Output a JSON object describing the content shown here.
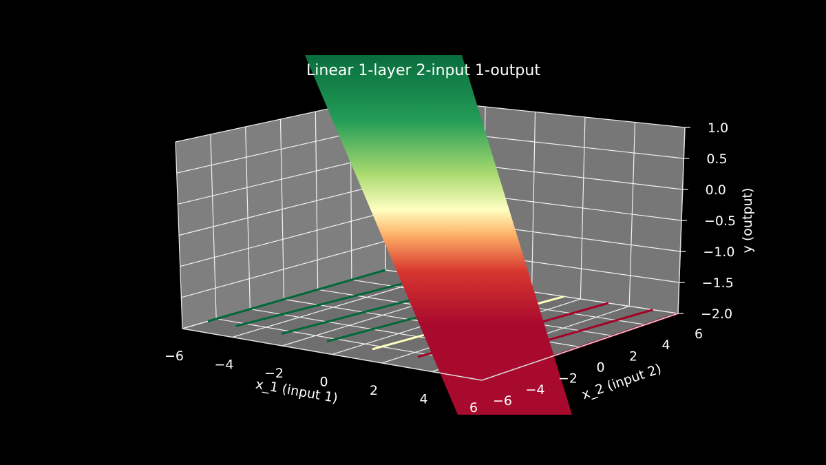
{
  "chart_data": {
    "type": "surface3d",
    "title": "Linear 1-layer 2-input 1-output",
    "xlabel": "x_1 (input 1)",
    "ylabel": "x_2 (input 2)",
    "zlabel": "y (output)",
    "x_ticks": [
      "−6",
      "−4",
      "−2",
      "0",
      "2",
      "4",
      "6"
    ],
    "y_ticks": [
      "−6",
      "−4",
      "−2",
      "0",
      "2",
      "4",
      "6"
    ],
    "z_ticks": [
      "1.0",
      "0.5",
      "0.0",
      "−0.5",
      "−1.0",
      "−1.5",
      "−2.0"
    ],
    "xlim": [
      -6,
      6
    ],
    "ylim": [
      -6,
      6
    ],
    "zlim": [
      -2.0,
      1.0
    ],
    "colormap": "RdYlGn",
    "surface_color_stops": [
      "#006837",
      "#1a9850",
      "#a6d96a",
      "#ffffbf",
      "#fdae61",
      "#d73027",
      "#a50026"
    ],
    "contour_lines": [
      {
        "value": 1.0,
        "color": "#006837"
      },
      {
        "value": 0.8,
        "color": "#006837"
      },
      {
        "value": 0.6,
        "color": "#006837"
      },
      {
        "value": 0.4,
        "color": "#006837"
      },
      {
        "value": 0.0,
        "color": "#ffffbf"
      },
      {
        "value": -1.0,
        "color": "#a50026"
      },
      {
        "value": -1.5,
        "color": "#a50026"
      },
      {
        "value": -2.0,
        "color": "#a50026"
      }
    ],
    "background": "#000000",
    "pane_color": "#808080",
    "grid": true
  }
}
